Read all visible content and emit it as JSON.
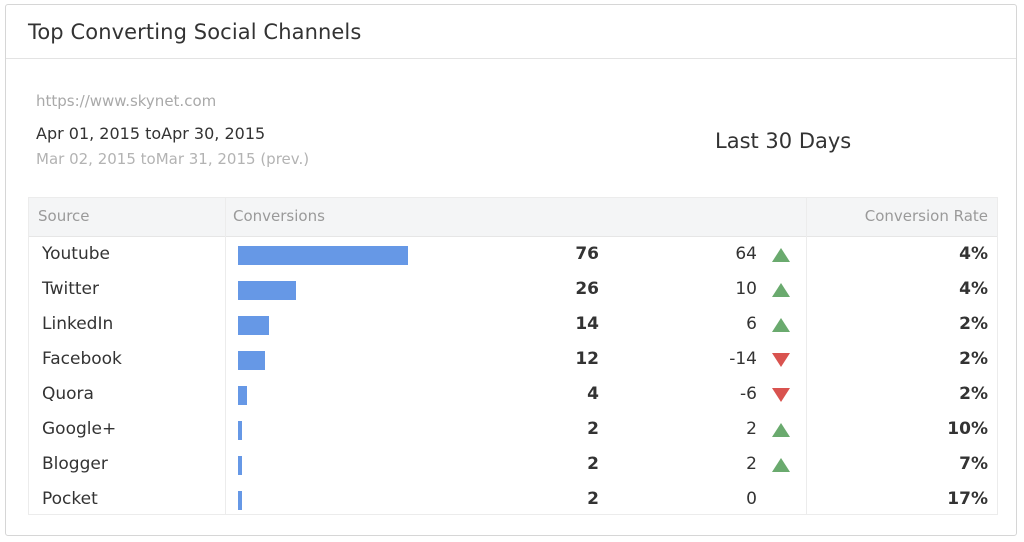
{
  "widget": {
    "title": "Top Converting Social Channels",
    "url": "https://www.skynet.com",
    "date_range": "Apr 01, 2015 toApr 30, 2015",
    "prev_range": "Mar 02, 2015 toMar 31, 2015 (prev.)",
    "period_label": "Last 30 Days"
  },
  "table": {
    "headers": {
      "source": "Source",
      "conversions": "Conversions",
      "rate": "Conversion Rate"
    },
    "rows": [
      {
        "source": "Youtube",
        "conversions": "76",
        "change": "64",
        "trend": "up",
        "rate": "4%"
      },
      {
        "source": "Twitter",
        "conversions": "26",
        "change": "10",
        "trend": "up",
        "rate": "4%"
      },
      {
        "source": "LinkedIn",
        "conversions": "14",
        "change": "6",
        "trend": "up",
        "rate": "2%"
      },
      {
        "source": "Facebook",
        "conversions": "12",
        "change": "-14",
        "trend": "down",
        "rate": "2%"
      },
      {
        "source": "Quora",
        "conversions": "4",
        "change": "-6",
        "trend": "down",
        "rate": "2%"
      },
      {
        "source": "Google+",
        "conversions": "2",
        "change": "2",
        "trend": "up",
        "rate": "10%"
      },
      {
        "source": "Blogger",
        "conversions": "2",
        "change": "2",
        "trend": "up",
        "rate": "7%"
      },
      {
        "source": "Pocket",
        "conversions": "2",
        "change": "0",
        "trend": "none",
        "rate": "17%"
      }
    ]
  },
  "colors": {
    "bar": "#6698e6",
    "trend_up": "#6aaa6e",
    "trend_down": "#d9534f"
  },
  "icons": {
    "up": "triangle-up-icon",
    "down": "triangle-down-icon"
  }
}
